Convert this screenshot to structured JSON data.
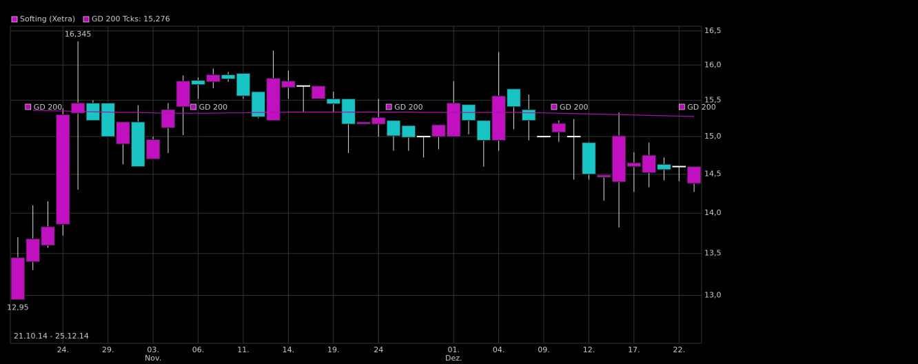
{
  "chart_data": {
    "type": "candlestick",
    "log_scale": true,
    "grid": true,
    "background": "#000000",
    "grid_color": "#333333",
    "footer": "21.10.14 - 25.12.14",
    "categories": [
      null,
      null,
      null,
      "24.",
      null,
      null,
      "29.",
      null,
      null,
      "03.",
      null,
      null,
      "06.",
      null,
      null,
      "11.",
      null,
      null,
      "14.",
      null,
      null,
      "19.",
      null,
      null,
      "24",
      null,
      null,
      null,
      null,
      "01.",
      null,
      null,
      "04.",
      null,
      null,
      "09.",
      null,
      null,
      "12.",
      null,
      null,
      "17.",
      null,
      null,
      "22.",
      null
    ],
    "month_labels": [
      null,
      null,
      null,
      null,
      null,
      null,
      null,
      null,
      null,
      "Nov.",
      null,
      null,
      null,
      null,
      null,
      null,
      null,
      null,
      null,
      null,
      null,
      null,
      null,
      null,
      null,
      null,
      null,
      null,
      null,
      "Dez.",
      null,
      null,
      null,
      null,
      null,
      null,
      null,
      null,
      null,
      null,
      null,
      null,
      null,
      null,
      null,
      null
    ],
    "series": [
      {
        "name": "Softing (Xetra)",
        "up_color": "#c010c0",
        "down_color": "#18c4c4",
        "doji_color": "#ffffff",
        "open": [
          12.95,
          13.4,
          13.6,
          13.86,
          15.32,
          15.46,
          15.46,
          14.9,
          15.2,
          14.7,
          15.12,
          15.41,
          15.78,
          15.76,
          15.86,
          15.88,
          15.62,
          15.22,
          15.68,
          15.7,
          15.52,
          15.52,
          15.52,
          15.17,
          15.17,
          15.22,
          15.15,
          15.0,
          15.0,
          15.0,
          15.44,
          15.22,
          14.95,
          15.66,
          15.37,
          15.0,
          15.06,
          15.0,
          14.92,
          14.46,
          14.4,
          14.6,
          14.52,
          14.63,
          14.6,
          14.38
        ],
        "high": [
          13.7,
          14.1,
          14.15,
          15.39,
          16.345,
          15.5,
          15.46,
          15.2,
          15.43,
          15.0,
          15.46,
          15.85,
          15.82,
          15.95,
          15.9,
          15.88,
          15.62,
          16.21,
          15.92,
          15.7,
          15.7,
          15.62,
          15.52,
          15.2,
          15.52,
          15.22,
          15.15,
          15.0,
          15.16,
          15.77,
          15.44,
          15.22,
          16.19,
          15.66,
          15.58,
          15.0,
          15.22,
          15.24,
          14.93,
          14.49,
          15.33,
          14.79,
          14.92,
          14.72,
          14.6,
          14.6
        ],
        "low": [
          12.95,
          13.3,
          13.57,
          13.72,
          14.3,
          15.22,
          15.0,
          14.63,
          14.6,
          14.7,
          14.78,
          15.02,
          15.52,
          15.67,
          15.76,
          15.52,
          15.25,
          15.22,
          15.52,
          15.33,
          15.52,
          15.33,
          14.78,
          15.17,
          15.0,
          14.81,
          14.81,
          14.72,
          14.83,
          15.0,
          15.03,
          14.6,
          14.81,
          15.1,
          14.95,
          15.0,
          14.93,
          14.43,
          14.43,
          14.16,
          13.82,
          14.27,
          14.33,
          14.42,
          14.41,
          14.27
        ],
        "close": [
          13.45,
          13.68,
          13.83,
          15.3,
          15.46,
          15.22,
          15.0,
          15.2,
          14.6,
          14.96,
          15.37,
          15.77,
          15.72,
          15.86,
          15.8,
          15.56,
          15.27,
          15.81,
          15.77,
          15.7,
          15.7,
          15.45,
          15.17,
          15.2,
          15.26,
          15.01,
          14.99,
          15.0,
          15.16,
          15.46,
          15.22,
          14.95,
          15.56,
          15.41,
          15.22,
          15.0,
          15.18,
          15.0,
          14.5,
          14.49,
          15.01,
          14.65,
          14.75,
          14.56,
          14.6,
          14.6
        ],
        "high_label": {
          "value": 16.345,
          "label": "16,345"
        },
        "low_label": {
          "value": 12.95,
          "label": "12,95"
        }
      },
      {
        "name": "GD 200 Tcks: 15,276",
        "color": "#b010b0",
        "values": [
          null,
          15.36,
          15.355,
          15.35,
          15.345,
          15.34,
          15.335,
          15.33,
          15.33,
          15.325,
          15.32,
          15.32,
          15.32,
          15.32,
          15.325,
          15.325,
          15.33,
          15.33,
          15.335,
          15.335,
          15.335,
          15.335,
          15.335,
          15.335,
          15.335,
          15.335,
          15.335,
          15.33,
          15.33,
          15.33,
          15.33,
          15.33,
          15.33,
          15.33,
          15.325,
          15.325,
          15.32,
          15.315,
          15.31,
          15.305,
          15.3,
          15.295,
          15.29,
          15.285,
          15.28,
          15.276
        ],
        "annotations": [
          "GD 200",
          "GD 200",
          "GD 200",
          "GD 200",
          "GD 200"
        ]
      }
    ],
    "ylim": [
      12.45,
      16.57
    ],
    "yticks": [
      {
        "value": 13,
        "label": "13,0"
      },
      {
        "value": 13.5,
        "label": "13,5"
      },
      {
        "value": 14,
        "label": "14,0"
      },
      {
        "value": 14.5,
        "label": "14,5"
      },
      {
        "value": 15,
        "label": "15,0"
      },
      {
        "value": 15.5,
        "label": "15,5"
      },
      {
        "value": 16,
        "label": "16,0"
      },
      {
        "value": 16.5,
        "label": "16,5"
      }
    ]
  }
}
